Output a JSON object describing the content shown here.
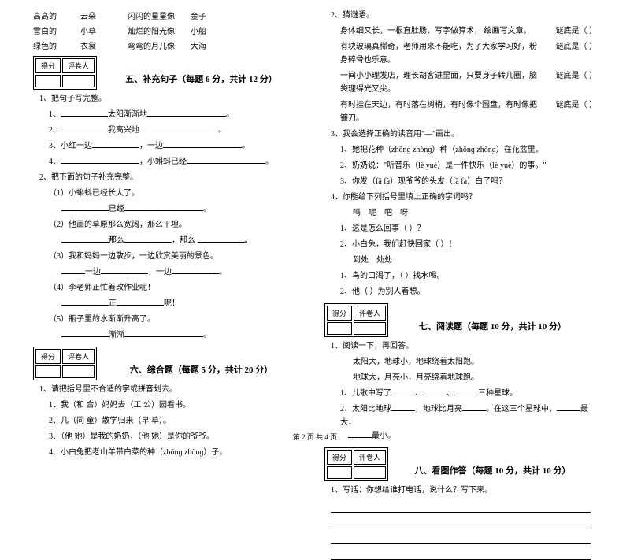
{
  "leftTop": {
    "rows": [
      [
        "高高的",
        "云朵",
        "闪闪的星星像",
        "金子"
      ],
      [
        "雪白的",
        "小草",
        "灿烂的阳光像",
        "小船"
      ],
      [
        "绿色的",
        "衣裳",
        "弯弯的月儿像",
        "大海"
      ]
    ]
  },
  "scoreHeaders": [
    "得分",
    "评卷人"
  ],
  "section5": {
    "title": "五、补充句子（每题 6 分，共计 12 分）",
    "q1": "1、把句子写完整。",
    "q1items": [
      {
        "pre": "1、",
        "a": "太阳渐渐地",
        "suffix": "。"
      },
      {
        "pre": "2、",
        "a": "我高兴地",
        "suffix": "。"
      },
      {
        "pre": "3、小红一边",
        "mid": "，一边",
        "suffix": "。"
      },
      {
        "pre": "4、",
        "a": "，小蝌蚪已经",
        "suffix": "。"
      }
    ],
    "q2": "2、把下面的句子补充完整。",
    "q2items": [
      "（1）小蝌蚪已经长大了。",
      "（2）他画的草原那么宽阔，那么平坦。",
      "（3）我和妈妈一边散步，一边欣赏美丽的景色。",
      "（4）李老师正忙着改作业呢！",
      "（5）瓶子里的水渐渐升高了。"
    ],
    "q2fill": [
      {
        "pre": "",
        "a": "已经",
        "suffix": "。"
      },
      {
        "pre": "",
        "a": "那么",
        "mid": "，那么",
        "suffix": "。"
      },
      {
        "pre": "",
        "a": "一边",
        "mid": "，一边",
        "suffix": "。"
      },
      {
        "pre": "",
        "a": "正",
        "mid": "呢！"
      },
      {
        "pre": "",
        "a": "渐渐",
        "suffix": "。"
      }
    ]
  },
  "section6": {
    "title": "六、综合题（每题 5 分，共计 20 分）",
    "q1": "1、请把括号里不合适的字或拼音划去。",
    "q1items": [
      "1、我（和  合）妈妈去（工  公）园看书。",
      "2、几（同  童）散学归来（早  草）。",
      "3、（他  她）是我的奶奶，（他  她）是你的爷爷。",
      "4、小白兔把老山羊带白菜的种（zhǒnɡ  zhònɡ）子。"
    ]
  },
  "rightTop": {
    "q2": "2、猜谜语。",
    "riddles": [
      "身体细又长，一根直肚肠，写字做算术，    绘画写文章。",
      "有块玻璃真稀奇，老师用来不能吃，为了大家学习好，粉身碎骨也乐意。",
      "一间小小理发店，理长胡客进里面，只要身子转几圈，脑袋理得光又尖。",
      "有时挂在天边，有时落在树梢，有时像个圆盘，有时像把镰刀。"
    ],
    "riddleAns": "谜底是（        ）",
    "q3": "3、我会选择正确的读音用\"—\"画出。",
    "q3items": [
      "1、她把花种（zhōnɡ    zhònɡ）种（zhōnɡ    zhònɡ）在花盆里。",
      "2、奶奶说：\"听音乐（lè  yuè）是一件快乐（lè  yuè）的事。\"",
      "3、你发（fā      fà）现爷爷的头发（fā     fà）白了吗？"
    ],
    "q4": "4、你能给下列括号里填上正确的字词吗？",
    "q4items": [
      {
        "a": "吗",
        "b": "呢",
        "c": "吧",
        "d": "呀"
      },
      "1、这是怎么回事（        ）？",
      "2、小白兔，我们赶快回家（        ）！",
      {
        "a": "到处",
        "b": "处处"
      },
      "1、鸟的口渴了，（        ）找水喝。",
      "2、他（        ）为别人着想。"
    ]
  },
  "section7": {
    "title": "七、阅读题（每题 10 分，共计 10 分）",
    "q1": "1、阅读一下，再回答。",
    "poem": [
      "太阳大，地球小，地球绕着太阳跑。",
      "地球大，月亮小，月亮绕着地球跑。"
    ],
    "q1items": [
      {
        "text": "1、儿歌中写了",
        "mid": "、",
        "mid2": "、",
        "tail": "三种星球。"
      },
      {
        "text": "2、太阳比地球",
        "mid": "，地球比月亮",
        "mid2": "。在这三个星球中，",
        "tail1": "最大，",
        "tail2": "最小。"
      }
    ]
  },
  "section8": {
    "title": "八、看图作答（每题 10 分，共计 10 分）",
    "q1": "1、写话：你想给谁打电话，说什么？写下来。"
  },
  "footer": "第 2 页  共 4 页"
}
